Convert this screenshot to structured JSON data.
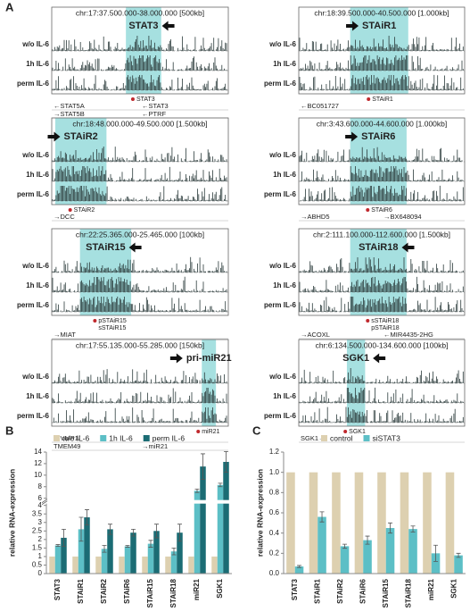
{
  "panel_labels": [
    "A",
    "B",
    "C"
  ],
  "track_labels": [
    "w/o IL-6",
    "1h IL-6",
    "perm IL-6"
  ],
  "tracks": [
    {
      "region": "chr:17:37.500.000-38.000.000 [500kb]",
      "name": "STAT3",
      "direction": "left",
      "marks": [
        "STAT3"
      ],
      "gene_rows": [
        [
          {
            "label": "←STAT5A",
            "color": "#222"
          },
          {
            "label": "←STAT3",
            "color": "#1a8a96"
          }
        ],
        [
          {
            "label": "→STAT5B",
            "color": "#222"
          },
          {
            "label": "←PTRF",
            "color": "#222"
          }
        ]
      ]
    },
    {
      "region": "chr:18:39.500.000-40.500.000 [1.000kb]",
      "name": "STAiR1",
      "direction": "right",
      "marks": [
        "STAiR1"
      ],
      "gene_rows": [
        [
          {
            "label": "←BC051727",
            "color": "#222"
          }
        ]
      ]
    },
    {
      "region": "chr:18:48.000.000-49.500.000 [1.500kb]",
      "name": "STAiR2",
      "direction": "right",
      "marks": [
        "STAiR2"
      ],
      "gene_rows": [
        [
          {
            "label": "→DCC",
            "color": "#222"
          }
        ]
      ]
    },
    {
      "region": "chr:3:43.600.000-44.600.000 [1.000kb]",
      "name": "STAiR6",
      "direction": "right",
      "marks": [
        "STAiR6"
      ],
      "gene_rows": [
        [
          {
            "label": "→ABHD5",
            "color": "#222"
          },
          {
            "label": "→BX648094",
            "color": "#222"
          }
        ]
      ]
    },
    {
      "region": "chr:22:25.365.000-25.465.000 [100kb]",
      "name": "STAiR15",
      "direction": "left",
      "marks": [
        "pSTAiR15",
        "sSTAiR15"
      ],
      "gene_rows": [
        [
          {
            "label": "→MIAT",
            "color": "#1a8a96"
          }
        ]
      ]
    },
    {
      "region": "chr:2:111.100.000-112.600.000 [1.500kb]",
      "name": "STAiR18",
      "direction": "left",
      "marks": [
        "sSTAiR18",
        "pSTAiR18"
      ],
      "gene_rows": [
        [
          {
            "label": "→ACOXL",
            "color": "#222"
          },
          {
            "label": "←MIR4435-2HG",
            "color": "#1a8a96"
          }
        ]
      ]
    },
    {
      "region": "chr:17:55.135.000-55.285.000 [150kb]",
      "name": "pri-miR21",
      "direction": "right",
      "marks": [
        "miR21"
      ],
      "gene_rows": [
        [
          {
            "label": "→VMP1/",
            "color": "#222"
          }
        ],
        [
          {
            "label": "TMEM49",
            "color": "#222"
          },
          {
            "label": "→miR21",
            "color": "#1a8a96"
          }
        ]
      ]
    },
    {
      "region": "chr:6:134.500.000-134.600.000 [100kb]",
      "name": "SGK1",
      "direction": "left",
      "marks": [
        "SGK1"
      ],
      "gene_rows": [
        [
          {
            "label": "SGK1→",
            "color": "#1a8a96"
          }
        ]
      ]
    }
  ],
  "chart_data": [
    {
      "type": "bar",
      "y_label": "relative RNA-expression",
      "categories": [
        "STAT3",
        "STAiR1",
        "STAiR2",
        "STAiR6",
        "STAiR15",
        "STAiR18",
        "miR21",
        "SGK1"
      ],
      "series": [
        {
          "name": "w/o IL-6",
          "color": "#ddd0b0",
          "values": [
            1,
            1,
            1,
            1,
            1,
            1,
            1,
            1
          ]
        },
        {
          "name": "1h IL-6",
          "color": "#5cbfc6",
          "values": [
            1.65,
            2.6,
            1.45,
            1.6,
            1.75,
            1.3,
            7.3,
            8.3
          ],
          "errors": [
            0.05,
            0.7,
            0.2,
            0.05,
            0.2,
            0.2,
            0.3,
            0.3
          ]
        },
        {
          "name": "perm IL-6",
          "color": "#1b6c74",
          "values": [
            2.1,
            3.3,
            2.6,
            2.4,
            2.5,
            2.4,
            11.5,
            12.3
          ],
          "errors": [
            0.5,
            0.45,
            0.3,
            0.2,
            0.4,
            0.5,
            2.2,
            1.8
          ]
        }
      ],
      "ylim": [
        0,
        14
      ],
      "y_break": [
        4,
        6
      ],
      "yticks": [
        0,
        0.5,
        1,
        1.5,
        2,
        2.5,
        3,
        3.5,
        4,
        6,
        8,
        10,
        12,
        14
      ]
    },
    {
      "type": "bar",
      "y_label": "relative RNA-expression",
      "categories": [
        "STAT3",
        "STAiR1",
        "STAiR2",
        "STAiR6",
        "STAiR15",
        "STAiR18",
        "miR21",
        "SGK1"
      ],
      "series": [
        {
          "name": "control",
          "color": "#ddd0b0",
          "values": [
            1,
            1,
            1,
            1,
            1,
            1,
            1,
            1
          ]
        },
        {
          "name": "siSTAT3",
          "color": "#5cbfc6",
          "values": [
            0.07,
            0.56,
            0.27,
            0.33,
            0.45,
            0.44,
            0.2,
            0.18
          ],
          "errors": [
            0.01,
            0.05,
            0.02,
            0.04,
            0.05,
            0.03,
            0.08,
            0.02
          ]
        }
      ],
      "ylim": [
        0,
        1.2
      ],
      "yticks": [
        {
          "value": 0,
          "label": "0.0"
        },
        0.2,
        0.4,
        0.6,
        0.8,
        {
          "value": 1,
          "label": "1.0"
        },
        1.2
      ]
    }
  ]
}
